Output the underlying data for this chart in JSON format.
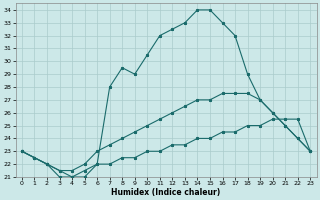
{
  "xlabel": "Humidex (Indice chaleur)",
  "bg_color": "#cce8e8",
  "grid_color": "#aacccc",
  "line_color": "#1a6b6b",
  "xlim": [
    -0.5,
    23.5
  ],
  "ylim": [
    21,
    34.5
  ],
  "xticks": [
    0,
    1,
    2,
    3,
    4,
    5,
    6,
    7,
    8,
    9,
    10,
    11,
    12,
    13,
    14,
    15,
    16,
    17,
    18,
    19,
    20,
    21,
    22,
    23
  ],
  "yticks": [
    21,
    22,
    23,
    24,
    25,
    26,
    27,
    28,
    29,
    30,
    31,
    32,
    33,
    34
  ],
  "line_peak_x": [
    0,
    1,
    2,
    3,
    4,
    5,
    6,
    7,
    8,
    9,
    10,
    11,
    12,
    13,
    14,
    15,
    16,
    17,
    18,
    19,
    20,
    21,
    22,
    23
  ],
  "line_peak_y": [
    23,
    22.5,
    22,
    21,
    21,
    21,
    22,
    28,
    29.5,
    29,
    30.5,
    32,
    32.5,
    33,
    34,
    34,
    33,
    32,
    29,
    27,
    26,
    25,
    24,
    23
  ],
  "line_mid_x": [
    0,
    1,
    2,
    3,
    4,
    5,
    6,
    7,
    8,
    9,
    10,
    11,
    12,
    13,
    14,
    15,
    16,
    17,
    18,
    19,
    20,
    21,
    22,
    23
  ],
  "line_mid_y": [
    23,
    22.5,
    22,
    21.5,
    21.5,
    22,
    23,
    23.5,
    24,
    24.5,
    25,
    25.5,
    26,
    26.5,
    27,
    27,
    27.5,
    27.5,
    27.5,
    27,
    26,
    25,
    24,
    23
  ],
  "line_flat_x": [
    0,
    1,
    2,
    3,
    4,
    5,
    6,
    7,
    8,
    9,
    10,
    11,
    12,
    13,
    14,
    15,
    16,
    17,
    18,
    19,
    20,
    21,
    22,
    23
  ],
  "line_flat_y": [
    23,
    22.5,
    22,
    21.5,
    21,
    21.5,
    22,
    22,
    22.5,
    22.5,
    23,
    23,
    23.5,
    23.5,
    24,
    24,
    24.5,
    24.5,
    25,
    25,
    25.5,
    25.5,
    25.5,
    23
  ]
}
